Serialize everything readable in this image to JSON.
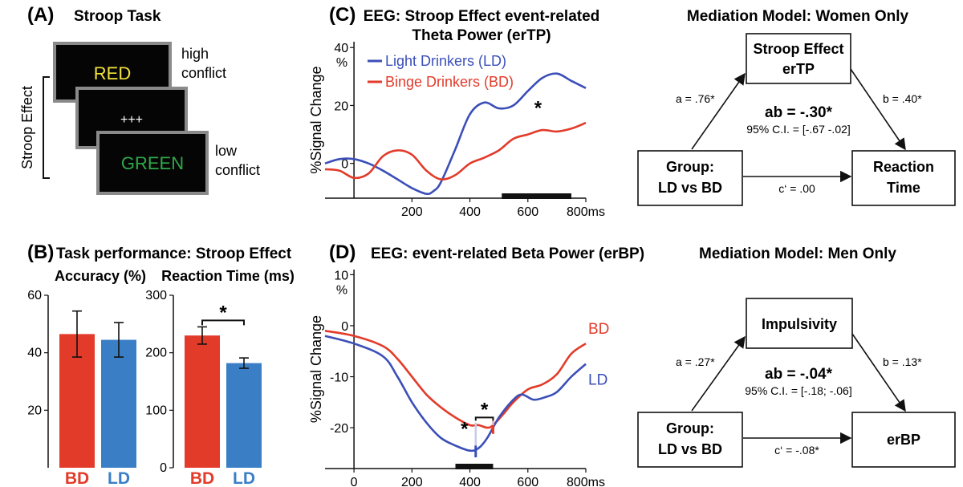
{
  "panel_labels": {
    "a": "(A)",
    "b": "(B)",
    "c": "(C)",
    "d": "(D)"
  },
  "stroop": {
    "title": "Stroop Task",
    "bracket_label": "Stroop Effect",
    "card1": {
      "word": "RED",
      "color": "#f2e33a"
    },
    "card2": {
      "word": "+++",
      "color": "#ffffff"
    },
    "card3": {
      "word": "GREEN",
      "color": "#2fa84a"
    },
    "high_label_1": "high",
    "high_label_2": "conflict",
    "low_label_1": "low",
    "low_label_2": "conflict"
  },
  "perf": {
    "title": "Task performance: Stroop Effect",
    "star": "*"
  },
  "mediation_women": {
    "title": "Mediation Model: Women Only",
    "mediator_1": "Stroop Effect",
    "mediator_2": "erTP",
    "group_1": "Group:",
    "group_2": "LD vs BD",
    "outcome_1": "Reaction",
    "outcome_2": "Time",
    "a": "a = .76*",
    "b": "b = .40*",
    "c": "c‘ = .00",
    "ab": "ab = -.30*",
    "ci": "95% C.I. = [-.67 -.02]"
  },
  "mediation_men": {
    "title": "Mediation Model: Men Only",
    "mediator_1": "Impulsivity",
    "group_1": "Group:",
    "group_2": "LD vs BD",
    "outcome_1": "erBP",
    "a": "a = .27*",
    "b": "b = .13*",
    "c": "c‘ = -.08*",
    "ab": "ab = -.04*",
    "ci": "95% C.I. = [-.18; -.06]"
  },
  "colors": {
    "bd": "#e23b2a",
    "ld": "#3a7fc6",
    "ld_line": "#3b4fb8",
    "bd_line": "#e23b2a"
  },
  "chart_data": [
    {
      "id": "accuracy",
      "type": "bar",
      "title": "Accuracy (%)",
      "categories": [
        "BD",
        "LD"
      ],
      "values": [
        46.5,
        44.5
      ],
      "errors": [
        8,
        6
      ],
      "ylim": [
        0,
        60
      ],
      "yticks": [
        20,
        40,
        60
      ]
    },
    {
      "id": "rt",
      "type": "bar",
      "title": "Reaction Time (ms)",
      "categories": [
        "BD",
        "LD"
      ],
      "values": [
        230,
        182
      ],
      "errors": [
        15,
        9
      ],
      "ylim": [
        0,
        300
      ],
      "yticks": [
        0,
        100,
        200,
        300
      ],
      "significance": "*"
    },
    {
      "id": "theta",
      "type": "line",
      "title_1": "EEG: Stroop Effect event-related",
      "title_2": "Theta Power (erTP)",
      "ylabel": "%Signal Change",
      "yunit": "%",
      "xlim": [
        -100,
        800
      ],
      "ylim": [
        -12,
        42
      ],
      "yticks": [
        0,
        20,
        40
      ],
      "xticks": [
        200,
        400,
        600,
        800
      ],
      "xunit": "ms",
      "star": "*",
      "sig_window": [
        510,
        750
      ],
      "series": [
        {
          "name": "Light Drinkers (LD)",
          "x": [
            -100,
            -50,
            0,
            50,
            100,
            150,
            200,
            250,
            275,
            300,
            350,
            400,
            450,
            500,
            550,
            600,
            650,
            700,
            750,
            800
          ],
          "y": [
            0,
            1.5,
            1.5,
            0,
            -2.5,
            -5.5,
            -8.5,
            -10.5,
            -9.5,
            -6.5,
            5,
            17,
            21,
            19,
            20,
            25,
            29.5,
            31,
            28.5,
            26
          ]
        },
        {
          "name": "Binge Drinkers (BD)",
          "x": [
            -100,
            -50,
            0,
            50,
            100,
            150,
            200,
            250,
            300,
            350,
            400,
            450,
            500,
            550,
            600,
            650,
            700,
            750,
            800
          ],
          "y": [
            -2,
            -2.5,
            -5,
            -3.5,
            2.5,
            4.5,
            3,
            -2.5,
            -5.5,
            -4,
            0,
            2,
            4.5,
            8.5,
            10,
            11.5,
            11,
            12,
            14
          ]
        }
      ]
    },
    {
      "id": "beta",
      "type": "line",
      "title": "EEG: event-related Beta Power (erBP)",
      "ylabel": "%Signal Change",
      "yunit": "%",
      "xlim": [
        -100,
        800
      ],
      "ylim": [
        -28,
        11
      ],
      "yticks": [
        -20,
        -10,
        0,
        10
      ],
      "xticks": [
        0,
        200,
        400,
        600,
        800
      ],
      "xunit": "ms",
      "sig_window": [
        350,
        480
      ],
      "stars": [
        "*",
        "*"
      ],
      "series": [
        {
          "name": "BD",
          "x": [
            -100,
            0,
            100,
            150,
            200,
            250,
            300,
            350,
            400,
            430,
            460,
            480,
            520,
            550,
            600,
            650,
            700,
            750,
            800
          ],
          "y": [
            -1,
            -2,
            -4,
            -6.5,
            -10,
            -13.5,
            -16,
            -18,
            -19.5,
            -19.5,
            -20,
            -19.5,
            -17,
            -15,
            -12.5,
            -11.5,
            -9.5,
            -5.5,
            -3.5
          ]
        },
        {
          "name": "LD",
          "x": [
            -100,
            0,
            100,
            150,
            200,
            250,
            300,
            350,
            400,
            430,
            460,
            500,
            550,
            580,
            620,
            660,
            700,
            750,
            800
          ],
          "y": [
            -2,
            -3.5,
            -6,
            -10,
            -15,
            -19,
            -22,
            -23.5,
            -24.5,
            -24,
            -22,
            -18,
            -14.5,
            -13.5,
            -14.5,
            -14,
            -13,
            -10,
            -7.5
          ]
        }
      ]
    }
  ]
}
